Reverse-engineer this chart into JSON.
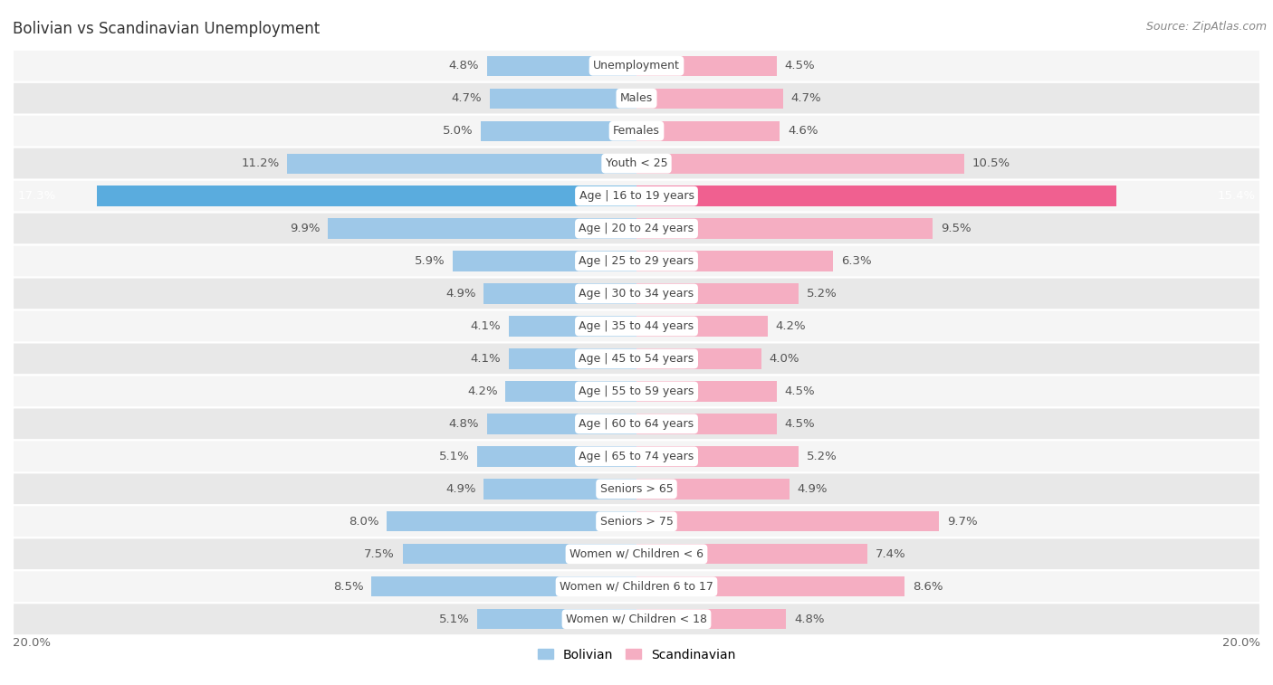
{
  "title": "Bolivian vs Scandinavian Unemployment",
  "source": "Source: ZipAtlas.com",
  "categories": [
    "Unemployment",
    "Males",
    "Females",
    "Youth < 25",
    "Age | 16 to 19 years",
    "Age | 20 to 24 years",
    "Age | 25 to 29 years",
    "Age | 30 to 34 years",
    "Age | 35 to 44 years",
    "Age | 45 to 54 years",
    "Age | 55 to 59 years",
    "Age | 60 to 64 years",
    "Age | 65 to 74 years",
    "Seniors > 65",
    "Seniors > 75",
    "Women w/ Children < 6",
    "Women w/ Children 6 to 17",
    "Women w/ Children < 18"
  ],
  "bolivian": [
    4.8,
    4.7,
    5.0,
    11.2,
    17.3,
    9.9,
    5.9,
    4.9,
    4.1,
    4.1,
    4.2,
    4.8,
    5.1,
    4.9,
    8.0,
    7.5,
    8.5,
    5.1
  ],
  "scandinavian": [
    4.5,
    4.7,
    4.6,
    10.5,
    15.4,
    9.5,
    6.3,
    5.2,
    4.2,
    4.0,
    4.5,
    4.5,
    5.2,
    4.9,
    9.7,
    7.4,
    8.6,
    4.8
  ],
  "bolivian_color": "#9ec8e8",
  "scandinavian_color": "#f5aec2",
  "highlight_bolivian_color": "#5aacde",
  "highlight_scandinavian_color": "#f06090",
  "highlight_indices": [
    4
  ],
  "background_color": "#ffffff",
  "row_odd_color": "#f5f5f5",
  "row_even_color": "#e8e8e8",
  "bar_height": 0.62,
  "xlim": 20.0,
  "label_fontsize": 9.5,
  "cat_fontsize": 9.0,
  "title_fontsize": 12,
  "source_fontsize": 9,
  "legend_fontsize": 10
}
